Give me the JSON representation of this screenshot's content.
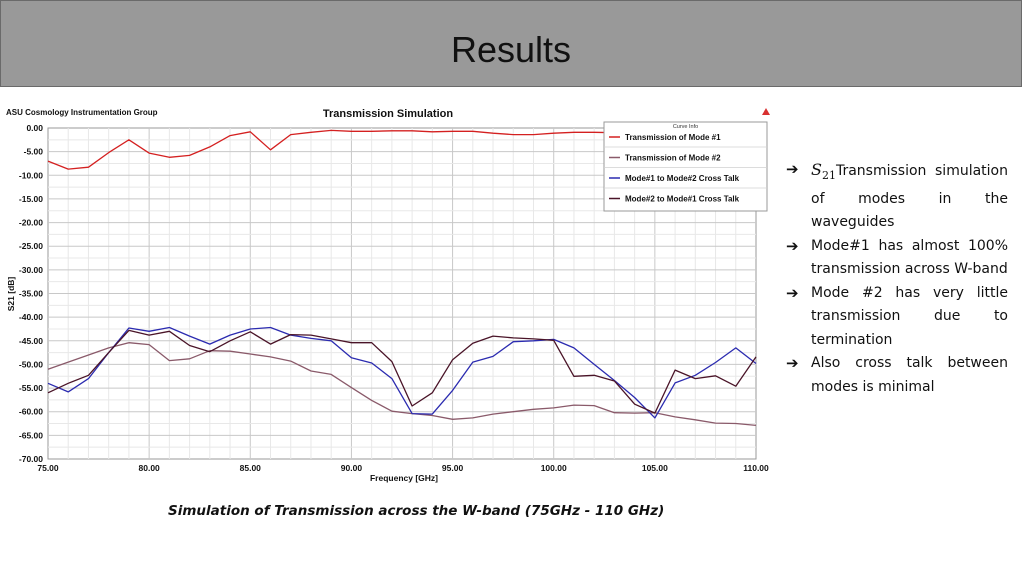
{
  "slide": {
    "title": "Results",
    "caption": "Simulation of Transmission across the W-band (75GHz - 110 GHz)",
    "bullets": [
      {
        "prefix_symbol": "S",
        "prefix_sub": "21",
        "text": "Transmission simulation of modes in the waveguides"
      },
      {
        "text": "Mode#1 has almost 100% transmission across W-band"
      },
      {
        "text": "Mode #2 has very little transmission due to termination"
      },
      {
        "text": "Also cross talk between modes is minimal"
      }
    ],
    "arrow_glyph": "➔"
  },
  "chart_data": {
    "type": "line",
    "group_label": "ASU Cosmology Instrumentation Group",
    "title": "Transmission Simulation",
    "xlabel": "Frequency [GHz]",
    "ylabel": "S21 [dB]",
    "xlim": [
      75,
      110
    ],
    "ylim": [
      -70,
      0
    ],
    "x_ticks": [
      75,
      80,
      85,
      90,
      95,
      100,
      105,
      110
    ],
    "x_tick_labels": [
      "75.00",
      "80.00",
      "85.00",
      "90.00",
      "95.00",
      "100.00",
      "105.00",
      "110.00"
    ],
    "y_ticks": [
      0,
      -5,
      -10,
      -15,
      -20,
      -25,
      -30,
      -35,
      -40,
      -45,
      -50,
      -55,
      -60,
      -65,
      -70
    ],
    "y_tick_labels": [
      "0.00",
      "-5.00",
      "-10.00",
      "-15.00",
      "-20.00",
      "-25.00",
      "-30.00",
      "-35.00",
      "-40.00",
      "-45.00",
      "-50.00",
      "-55.00",
      "-60.00",
      "-65.00",
      "-70.00"
    ],
    "legend_title": "Curve Info",
    "legend_position": "top-right",
    "grid": true,
    "x": [
      75,
      76,
      77,
      78,
      79,
      80,
      81,
      82,
      83,
      84,
      85,
      86,
      87,
      88,
      89,
      90,
      91,
      92,
      93,
      94,
      95,
      96,
      97,
      98,
      99,
      100,
      101,
      102,
      103,
      104,
      105,
      106,
      107,
      108,
      109,
      110
    ],
    "series": [
      {
        "name": "Transmission of Mode #1",
        "color": "#d42020",
        "values": [
          -7,
          -8.7,
          -8.3,
          -5.2,
          -2.5,
          -5.3,
          -6.2,
          -5.8,
          -4,
          -1.6,
          -0.8,
          -4.6,
          -1.4,
          -0.9,
          -0.5,
          -0.7,
          -0.7,
          -0.6,
          -0.6,
          -0.8,
          -0.7,
          -0.7,
          -1.1,
          -1.4,
          -1.4,
          -1.1,
          -0.9,
          -0.9,
          -1,
          -1,
          -1.1,
          -1.1,
          -1.1,
          -1.1,
          -1.1,
          -1.2
        ]
      },
      {
        "name": "Transmission of Mode #2",
        "color": "#8a5a6a",
        "values": [
          -51,
          -49.5,
          -48,
          -46.5,
          -45.4,
          -45.8,
          -49.2,
          -48.8,
          -47.1,
          -47.2,
          -47.8,
          -48.4,
          -49.3,
          -51.4,
          -52.1,
          -54.9,
          -57.6,
          -59.9,
          -60.4,
          -60.8,
          -61.6,
          -61.3,
          -60.5,
          -60,
          -59.5,
          -59.2,
          -58.6,
          -58.7,
          -60.2,
          -60.3,
          -60.2,
          -61.1,
          -61.7,
          -62.4,
          -62.5,
          -62.9
        ]
      },
      {
        "name": "Mode#1 to Mode#2 Cross Talk",
        "color": "#2b2bb0",
        "values": [
          -54,
          -55.8,
          -53,
          -47.5,
          -42.3,
          -43,
          -42.2,
          -44,
          -45.7,
          -43.8,
          -42.5,
          -42.2,
          -43.8,
          -44.5,
          -45,
          -48.6,
          -49.7,
          -53,
          -60.4,
          -60.5,
          -55.5,
          -49.5,
          -48.3,
          -45.2,
          -45,
          -44.7,
          -46.5,
          -50,
          -53.4,
          -57,
          -61.3,
          -53.9,
          -52.3,
          -49.6,
          -46.5,
          -49.8
        ]
      },
      {
        "name": "Mode#2 to Mode#1 Cross Talk",
        "color": "#4a1428",
        "values": [
          -56,
          -54,
          -52.3,
          -47.5,
          -42.8,
          -43.8,
          -43,
          -46,
          -47.3,
          -45,
          -43.1,
          -45.7,
          -43.7,
          -43.8,
          -44.6,
          -45.4,
          -45.4,
          -49.4,
          -58.8,
          -56,
          -49,
          -45.5,
          -44,
          -44.4,
          -44.6,
          -44.9,
          -52.5,
          -52.3,
          -53.5,
          -58.4,
          -60.3,
          -51.2,
          -53,
          -52.4,
          -54.6,
          -48.4
        ]
      }
    ]
  }
}
